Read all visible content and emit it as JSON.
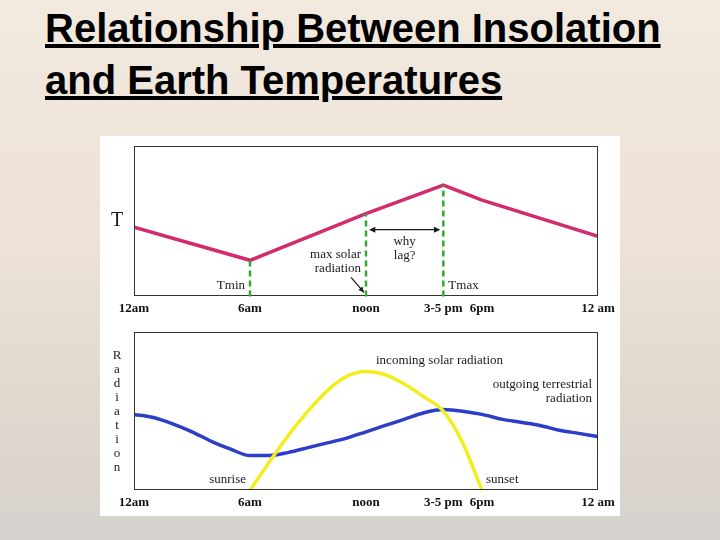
{
  "title": "Relationship Between Insolation and Earth Temperatures",
  "chart_data": [
    {
      "type": "line",
      "y_label": "T",
      "x": [
        0,
        6,
        12,
        16,
        18,
        24
      ],
      "series": [
        {
          "color": "#d42a6e",
          "values": [
            46,
            24,
            55,
            74,
            64,
            40
          ]
        }
      ],
      "xlim": [
        0,
        24
      ],
      "xticks": [
        {
          "value": 0,
          "label": "12am"
        },
        {
          "value": 6,
          "label": "6am"
        },
        {
          "value": 12,
          "label": "noon"
        },
        {
          "value": 16,
          "label": "3-5 pm"
        },
        {
          "value": 18,
          "label": "6pm"
        },
        {
          "value": 24,
          "label": "12 am"
        }
      ],
      "ylim": [
        0,
        100
      ],
      "tick_labels": "x",
      "grid": false,
      "annotations": [
        {
          "type": "vline",
          "x": 6,
          "text": "Tmin",
          "color": "#2eaa2e"
        },
        {
          "type": "vline",
          "x": 12,
          "text": "max solar radiation",
          "color": "#2eaa2e"
        },
        {
          "type": "vline",
          "x": 16,
          "text": "Tmax",
          "color": "#2eaa2e"
        },
        {
          "type": "span",
          "x": [
            12,
            16
          ],
          "text": "why lag?"
        }
      ]
    },
    {
      "type": "line",
      "y_label": "Radiation",
      "x": [
        0,
        1,
        2,
        3,
        4,
        5,
        6,
        7,
        8,
        9,
        10,
        11,
        12,
        13,
        14,
        15,
        16,
        17,
        18,
        19,
        20,
        21,
        22,
        23,
        24
      ],
      "series": [
        {
          "name": "incoming solar radiation",
          "color": "#f2ee1e",
          "values": [
            null,
            null,
            null,
            null,
            null,
            null,
            0,
            18,
            35,
            50,
            63,
            72,
            75,
            73,
            67,
            59,
            50,
            30,
            0,
            null,
            null,
            null,
            null,
            null,
            null
          ]
        },
        {
          "name": "outgoing terrestrial radiation",
          "color": "#2a3ec8",
          "values": [
            48,
            46,
            42,
            37,
            31,
            26,
            22,
            22,
            24,
            27,
            30,
            33,
            37,
            41,
            45,
            49,
            51,
            50,
            48,
            45,
            43,
            41,
            38,
            36,
            34
          ]
        }
      ],
      "xlim": [
        0,
        24
      ],
      "xticks": [
        {
          "value": 0,
          "label": "12am"
        },
        {
          "value": 6,
          "label": "6am"
        },
        {
          "value": 12,
          "label": "noon"
        },
        {
          "value": 16,
          "label": "3-5 pm"
        },
        {
          "value": 18,
          "label": "6pm"
        },
        {
          "value": 24,
          "label": "12 am"
        }
      ],
      "ylim": [
        0,
        100
      ],
      "tick_labels": "x",
      "grid": false,
      "annotations": [
        {
          "type": "text",
          "x": 6,
          "text": "sunrise"
        },
        {
          "type": "text",
          "x": 18,
          "text": "sunset"
        }
      ]
    }
  ]
}
